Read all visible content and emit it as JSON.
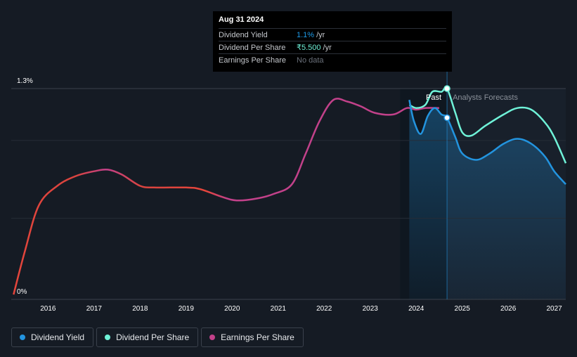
{
  "tooltip": {
    "date": "Aug 31 2024",
    "rows": [
      {
        "label": "Dividend Yield",
        "value": "1.1%",
        "unit": "/yr"
      },
      {
        "label": "Dividend Per Share",
        "value": "₹5.500",
        "unit": "/yr"
      },
      {
        "label": "Earnings Per Share",
        "value": "No data",
        "unit": ""
      }
    ]
  },
  "legend": [
    {
      "label": "Dividend Yield",
      "color": "#2394df"
    },
    {
      "label": "Dividend Per Share",
      "color": "#6ff2d8"
    },
    {
      "label": "Earnings Per Share",
      "color": "#c2418a"
    }
  ],
  "chart_data": {
    "type": "line",
    "ytick_labels": [
      "1.3%",
      "0%"
    ],
    "ylim": [
      0,
      1.3
    ],
    "xlim": [
      2015.2,
      2027.25
    ],
    "x_tick_labels": [
      "2016",
      "2017",
      "2018",
      "2019",
      "2020",
      "2021",
      "2022",
      "2023",
      "2024",
      "2025",
      "2026",
      "2027"
    ],
    "past_label": "Past",
    "forecast_label": "Analysts Forecasts",
    "past_region": [
      2023.65,
      2024.67
    ],
    "grid": true,
    "series": [
      {
        "name": "Earnings Per Share",
        "color": "#c2418a",
        "points": [
          [
            2015.25,
            0.03
          ],
          [
            2015.5,
            0.3
          ],
          [
            2015.8,
            0.58
          ],
          [
            2016.2,
            0.7
          ],
          [
            2016.6,
            0.76
          ],
          [
            2017.0,
            0.79
          ],
          [
            2017.3,
            0.8
          ],
          [
            2017.6,
            0.77
          ],
          [
            2018.0,
            0.7
          ],
          [
            2018.3,
            0.69
          ],
          [
            2019.0,
            0.69
          ],
          [
            2019.3,
            0.68
          ],
          [
            2019.8,
            0.63
          ],
          [
            2020.1,
            0.61
          ],
          [
            2020.5,
            0.62
          ],
          [
            2020.9,
            0.65
          ],
          [
            2021.3,
            0.71
          ],
          [
            2021.6,
            0.9
          ],
          [
            2021.9,
            1.1
          ],
          [
            2022.2,
            1.23
          ],
          [
            2022.5,
            1.22
          ],
          [
            2022.8,
            1.19
          ],
          [
            2023.1,
            1.15
          ],
          [
            2023.5,
            1.14
          ],
          [
            2023.8,
            1.18
          ],
          [
            2024.0,
            1.17
          ],
          [
            2024.2,
            1.18
          ],
          [
            2024.5,
            1.18
          ]
        ]
      },
      {
        "name": "Dividend Yield",
        "color": "#2394df",
        "points": [
          [
            2023.85,
            1.23
          ],
          [
            2023.95,
            1.1
          ],
          [
            2024.1,
            1.02
          ],
          [
            2024.25,
            1.13
          ],
          [
            2024.4,
            1.18
          ],
          [
            2024.55,
            1.14
          ],
          [
            2024.67,
            1.12
          ],
          [
            2024.85,
            1.0
          ],
          [
            2025.0,
            0.9
          ],
          [
            2025.3,
            0.86
          ],
          [
            2025.6,
            0.9
          ],
          [
            2025.9,
            0.96
          ],
          [
            2026.2,
            0.99
          ],
          [
            2026.5,
            0.96
          ],
          [
            2026.8,
            0.88
          ],
          [
            2027.0,
            0.79
          ],
          [
            2027.25,
            0.71
          ]
        ]
      },
      {
        "name": "Dividend Per Share",
        "color": "#6ff2d8",
        "points": [
          [
            2023.85,
            1.2
          ],
          [
            2024.0,
            1.18
          ],
          [
            2024.2,
            1.2
          ],
          [
            2024.35,
            1.28
          ],
          [
            2024.55,
            1.28
          ],
          [
            2024.67,
            1.3
          ],
          [
            2024.85,
            1.15
          ],
          [
            2025.0,
            1.03
          ],
          [
            2025.2,
            1.01
          ],
          [
            2025.5,
            1.07
          ],
          [
            2025.9,
            1.14
          ],
          [
            2026.2,
            1.18
          ],
          [
            2026.5,
            1.17
          ],
          [
            2026.8,
            1.09
          ],
          [
            2027.0,
            1.0
          ],
          [
            2027.25,
            0.84
          ]
        ]
      }
    ]
  }
}
